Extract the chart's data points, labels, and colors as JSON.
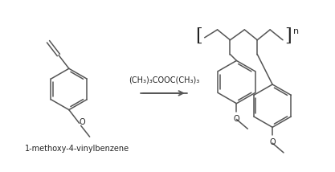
{
  "bg_color": "#ffffff",
  "line_color": "#555555",
  "text_color": "#222222",
  "reagent_text": "(CH₃)₃COOC(CH₃)₃",
  "label_text": "1-methoxy-4-vinylbenzene",
  "subscript_n": "n",
  "line_width": 1.1,
  "font_size_label": 7.0,
  "font_size_reagent": 7.0,
  "font_size_text": 7.0
}
